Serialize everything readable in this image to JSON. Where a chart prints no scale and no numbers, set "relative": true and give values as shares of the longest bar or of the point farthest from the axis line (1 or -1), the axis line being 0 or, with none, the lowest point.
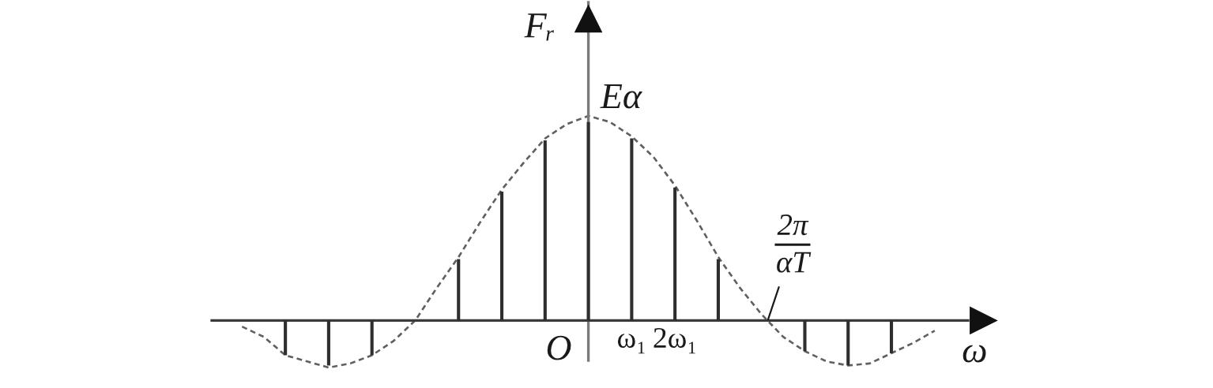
{
  "chart_data": {
    "type": "bar",
    "relative": true,
    "xlabel": "ω",
    "ylabel": "Fᵣ",
    "categories": [
      null,
      null,
      null,
      null,
      null,
      null,
      null,
      null,
      null,
      null,
      null,
      null,
      null,
      null,
      null,
      null,
      null,
      null,
      "ω₁",
      null,
      "2ω₁",
      null,
      null,
      null,
      null,
      null,
      null,
      null,
      null,
      null,
      null,
      null,
      null
    ],
    "series": [
      {
        "color": "#2e2e2e",
        "values": [
          null,
          null,
          -0.17,
          null,
          -0.22,
          null,
          -0.17,
          null,
          null,
          null,
          0.3,
          null,
          0.63,
          null,
          0.88,
          null,
          0.97,
          null,
          0.89,
          null,
          0.65,
          null,
          0.3,
          null,
          null,
          null,
          -0.15,
          null,
          -0.22,
          null,
          -0.16,
          null,
          null
        ]
      },
      {
        "type": "line",
        "color": "#606060",
        "line_style": "dashed",
        "values": [
          -0.03,
          -0.08,
          -0.17,
          -0.2,
          -0.23,
          -0.21,
          -0.17,
          -0.1,
          0,
          0.16,
          0.31,
          0.48,
          0.64,
          0.77,
          0.89,
          0.96,
          1,
          0.97,
          0.9,
          0.8,
          0.66,
          0.49,
          0.31,
          0.16,
          0.03,
          -0.08,
          -0.15,
          -0.2,
          -0.22,
          -0.21,
          -0.16,
          -0.11,
          -0.05
        ]
      }
    ],
    "annotations": [
      "Eα",
      "O",
      "2π\nαT"
    ]
  }
}
